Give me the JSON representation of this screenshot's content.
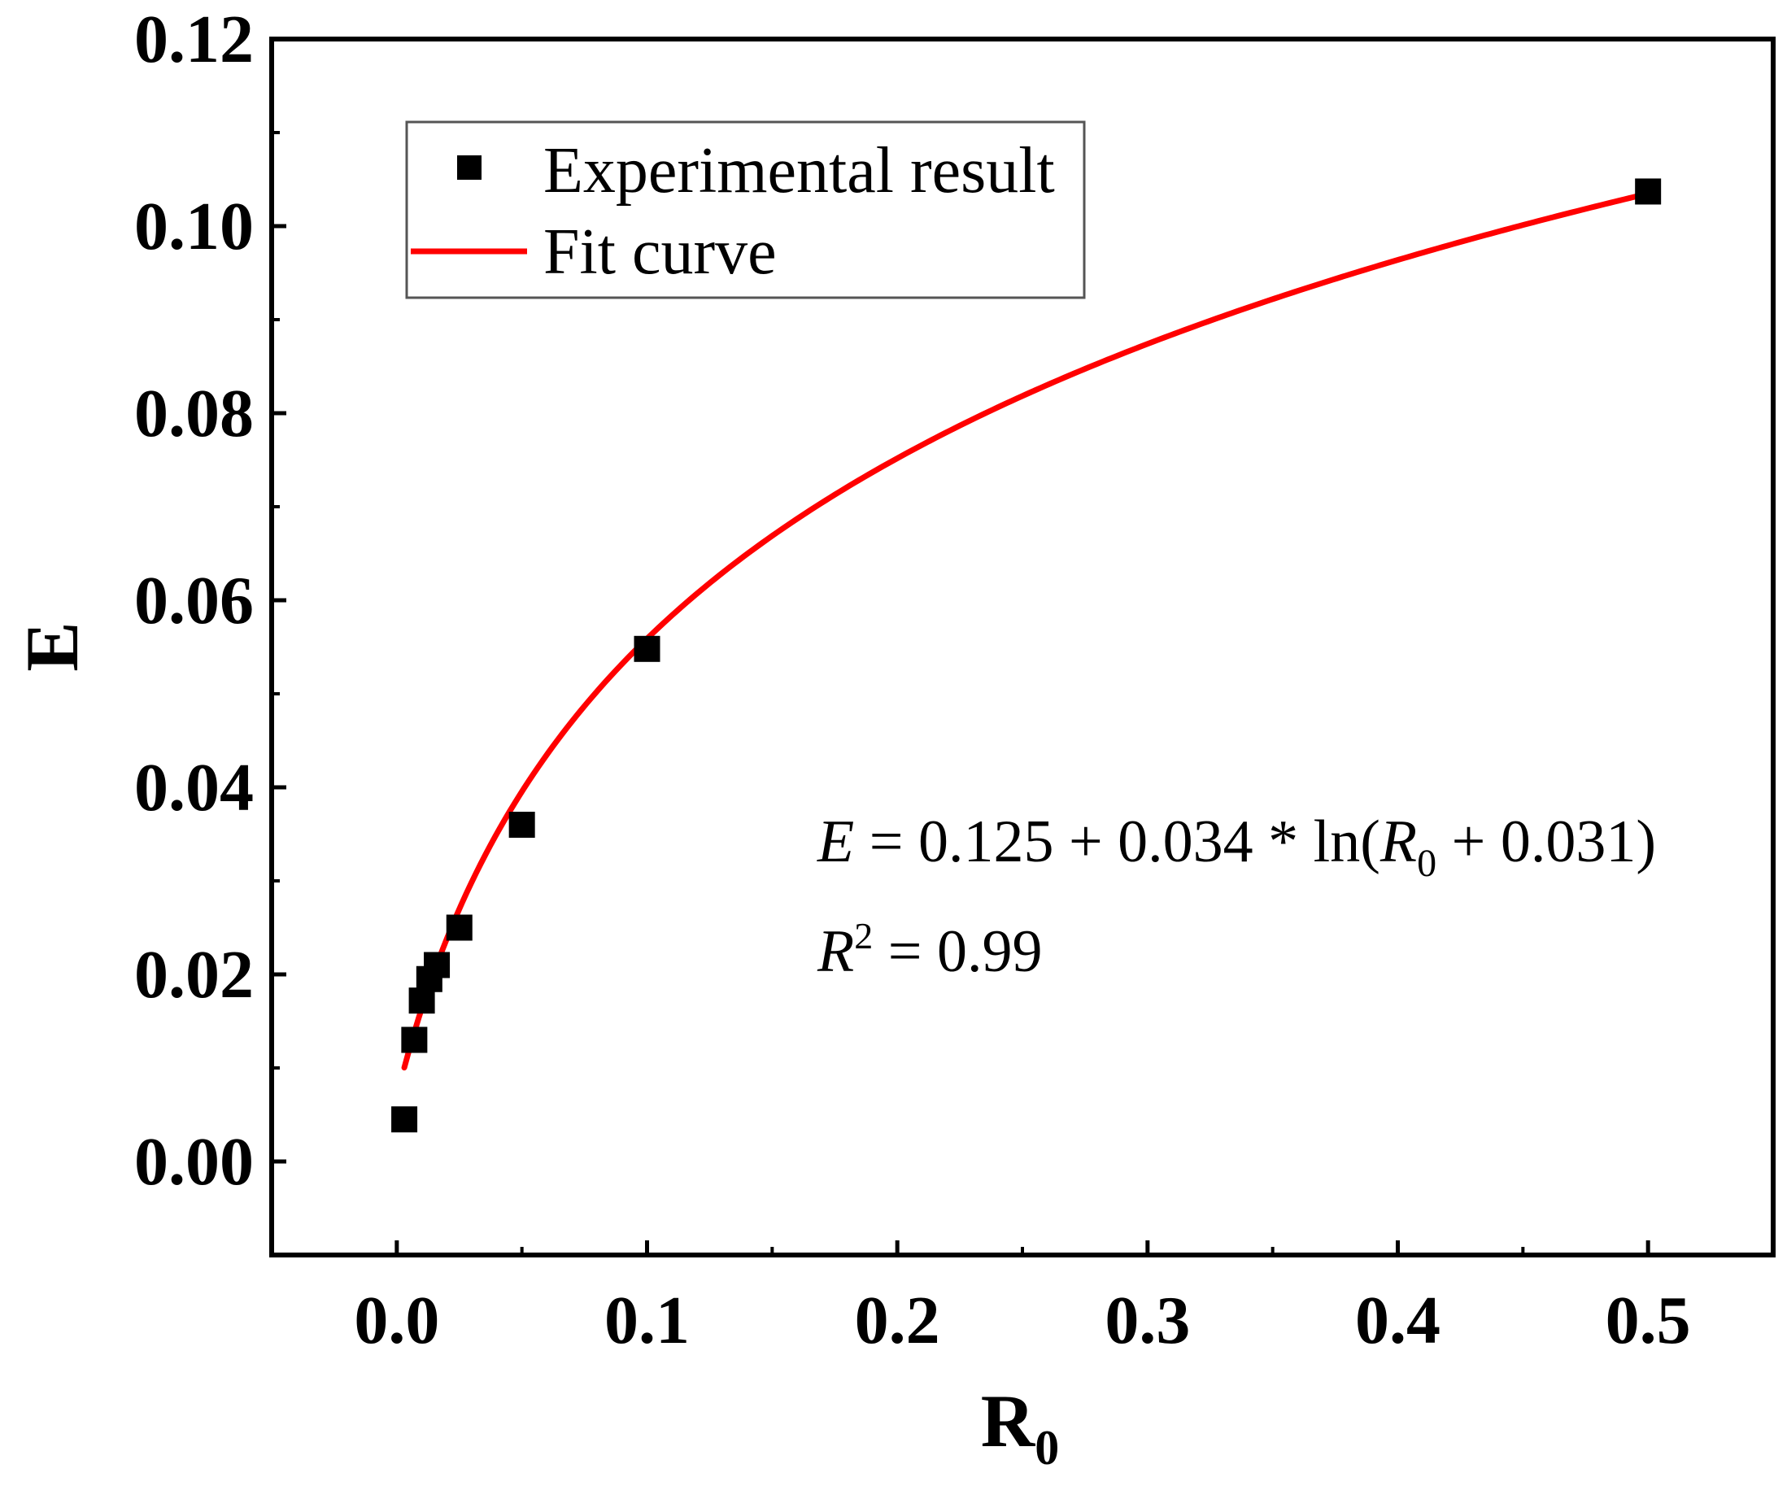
{
  "chart_data": {
    "type": "scatter",
    "title": "",
    "xlabel": "R",
    "xlabel_subscript": "0",
    "ylabel": "E",
    "xlim": [
      -0.05,
      0.55
    ],
    "ylim": [
      -0.01,
      0.12
    ],
    "x_ticks": [
      0.0,
      0.1,
      0.2,
      0.3,
      0.4,
      0.5
    ],
    "x_tick_labels": [
      "0.0",
      "0.1",
      "0.2",
      "0.3",
      "0.4",
      "0.5"
    ],
    "x_minor_ticks": [
      -0.05,
      0.05,
      0.15,
      0.25,
      0.35,
      0.45,
      0.55
    ],
    "y_ticks": [
      0.0,
      0.02,
      0.04,
      0.06,
      0.08,
      0.1,
      0.12
    ],
    "y_tick_labels": [
      "0.00",
      "0.02",
      "0.04",
      "0.06",
      "0.08",
      "0.10",
      "0.12"
    ],
    "y_minor_ticks": [
      -0.01,
      0.01,
      0.03,
      0.05,
      0.07,
      0.09,
      0.11
    ],
    "grid": false,
    "legend_position": "top-left",
    "series": [
      {
        "name": "Experimental result",
        "kind": "scatter",
        "marker": "square",
        "color": "#000000",
        "x": [
          0.003,
          0.007,
          0.01,
          0.013,
          0.016,
          0.025,
          0.05,
          0.1,
          0.5
        ],
        "y": [
          0.0045,
          0.013,
          0.0172,
          0.0195,
          0.021,
          0.025,
          0.036,
          0.0548,
          0.1037
        ]
      },
      {
        "name": "Fit curve",
        "kind": "line",
        "color": "#ff0000",
        "equation": {
          "a": 0.125,
          "b": 0.034,
          "c": 0.031
        },
        "x_range": [
          0.003,
          0.5
        ]
      }
    ],
    "annotations": {
      "equation": {
        "lhs": "E",
        "equals": "=",
        "constant": "0.125",
        "plus1": "+",
        "coef": "0.034",
        "mul": "*",
        "fn_open": "ln(",
        "var": "R",
        "var_sub": "0",
        "plus2": "+",
        "offset": "0.031",
        "fn_close": ")"
      },
      "r2": {
        "symbol": "R",
        "superscript": "2",
        "equals": "=",
        "value": "0.99"
      }
    }
  }
}
